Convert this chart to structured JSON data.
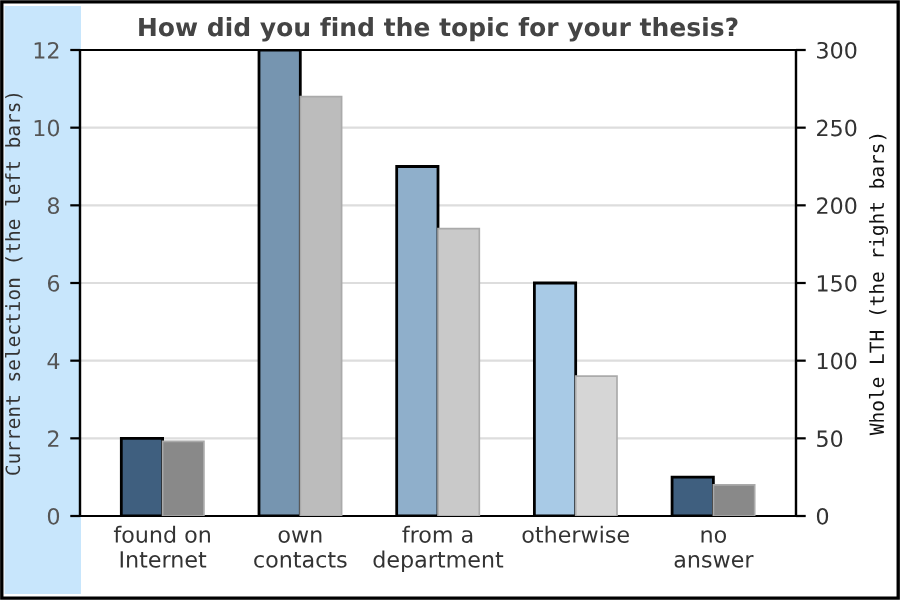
{
  "chart_data": {
    "type": "bar",
    "title": "How did you find the topic for your thesis?",
    "categories": [
      "found on\nInternet",
      "own\ncontacts",
      "from a\ndepartment",
      "otherwise",
      "no\nanswer"
    ],
    "ylabel": "Current selection (the left bars)",
    "y2label": "Whole LTH (the right bars)",
    "series": [
      {
        "colors": [
          "#3f5f7f",
          "#7695b0",
          "#8fafcb",
          "#a8cae6",
          "#3f5f7f"
        ],
        "values": [
          2,
          12,
          9,
          6,
          1
        ]
      },
      {
        "colors": [
          "#898989",
          "#bcbcbc",
          "#c9c9c9",
          "#d6d6d6",
          "#898989"
        ],
        "values": [
          48,
          270,
          185,
          90,
          20
        ],
        "axis": "y2"
      }
    ],
    "ylim": [
      0,
      12
    ],
    "yticks": [
      0,
      2,
      4,
      6,
      8,
      10,
      12
    ],
    "y2lim": [
      0,
      300
    ],
    "y2ticks": [
      0,
      50,
      100,
      150,
      200,
      250,
      300
    ],
    "grid": "y",
    "legend": false
  }
}
